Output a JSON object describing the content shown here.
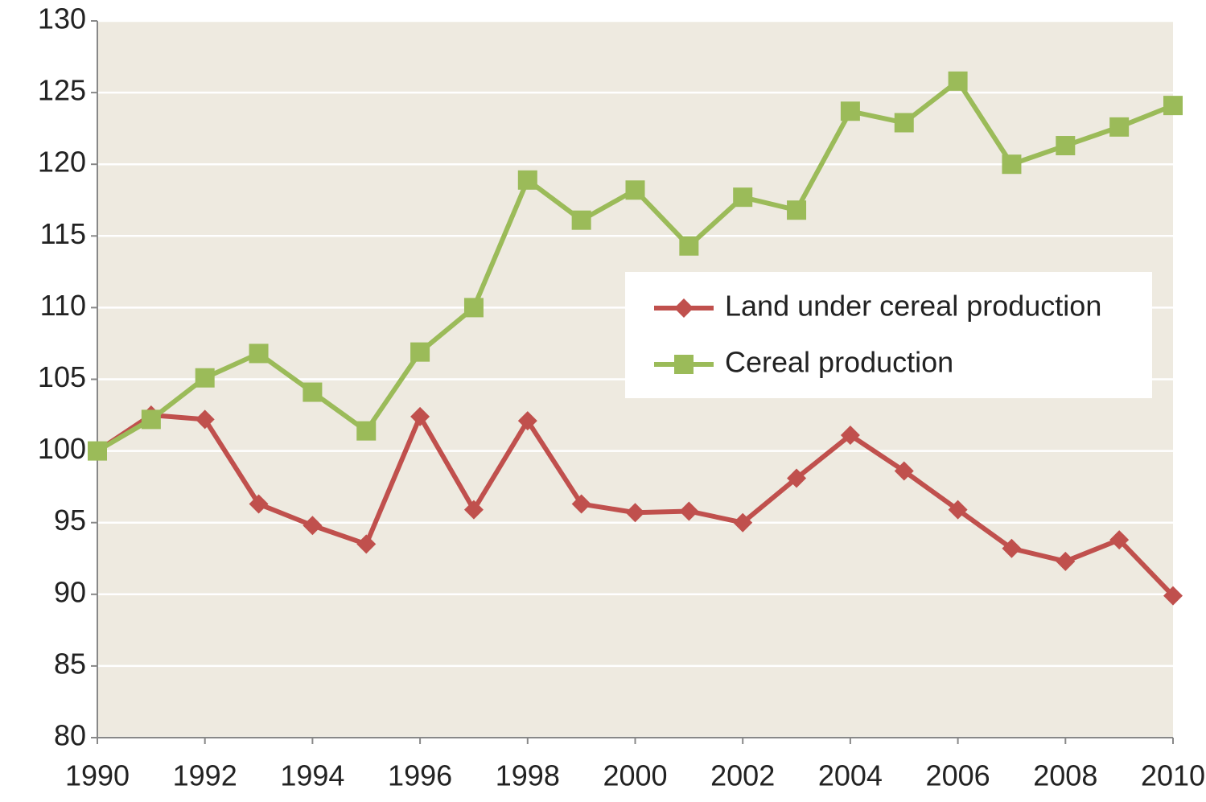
{
  "chart_data": {
    "type": "line",
    "x": [
      1990,
      1991,
      1992,
      1993,
      1994,
      1995,
      1996,
      1997,
      1998,
      1999,
      2000,
      2001,
      2002,
      2003,
      2004,
      2005,
      2006,
      2007,
      2008,
      2009,
      2010
    ],
    "series": [
      {
        "name": "Land under cereal production",
        "color": "#c0504d",
        "marker": "diamond",
        "values": [
          100,
          102.5,
          102.2,
          96.3,
          94.8,
          93.5,
          102.4,
          95.9,
          102.1,
          96.3,
          95.7,
          95.8,
          95.0,
          98.1,
          101.1,
          98.6,
          95.9,
          93.2,
          92.3,
          93.8,
          89.9
        ]
      },
      {
        "name": "Cereal production",
        "color": "#9bbb59",
        "marker": "square",
        "values": [
          100,
          102.2,
          105.1,
          106.8,
          104.1,
          101.4,
          106.9,
          110.0,
          118.9,
          116.1,
          118.2,
          114.3,
          117.7,
          116.8,
          123.7,
          122.9,
          125.8,
          120.0,
          121.3,
          122.6,
          124.1
        ]
      }
    ],
    "xlim": [
      1990,
      2010
    ],
    "xticks": [
      1990,
      1992,
      1994,
      1996,
      1998,
      2000,
      2002,
      2004,
      2006,
      2008,
      2010
    ],
    "ylim": [
      80,
      130
    ],
    "yticks": [
      80,
      85,
      90,
      95,
      100,
      105,
      110,
      115,
      120,
      125,
      130
    ],
    "grid": true,
    "legend": "right"
  }
}
